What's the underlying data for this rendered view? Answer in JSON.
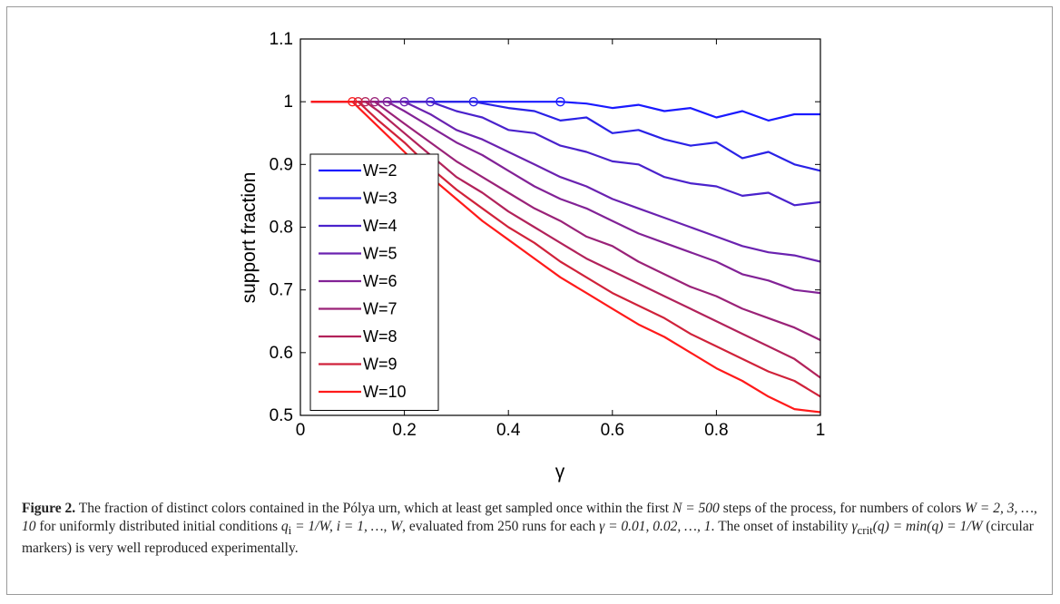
{
  "chart_data": {
    "type": "line",
    "xlabel": "γ",
    "ylabel": "support fraction",
    "xlim": [
      0,
      1
    ],
    "ylim": [
      0.5,
      1.1
    ],
    "xticks": [
      "0",
      "0.2",
      "0.4",
      "0.6",
      "0.8",
      "1"
    ],
    "yticks": [
      "0.5",
      "0.6",
      "0.7",
      "0.8",
      "0.9",
      "1",
      "1.1"
    ],
    "legend_position": "bottom-left",
    "grid": false,
    "markers": {
      "description": "circular markers at onset of instability",
      "points": [
        {
          "x": 0.5,
          "y": 1.0
        },
        {
          "x": 0.333,
          "y": 1.0
        },
        {
          "x": 0.25,
          "y": 1.0
        },
        {
          "x": 0.2,
          "y": 1.0
        },
        {
          "x": 0.167,
          "y": 1.0
        },
        {
          "x": 0.143,
          "y": 1.0
        },
        {
          "x": 0.125,
          "y": 1.0
        },
        {
          "x": 0.111,
          "y": 1.0
        },
        {
          "x": 0.1,
          "y": 1.0
        }
      ]
    },
    "series": [
      {
        "name": "W=2",
        "color": "#1a1aff",
        "onset": 0.5,
        "x": [
          0.02,
          0.5,
          0.55,
          0.6,
          0.65,
          0.7,
          0.75,
          0.8,
          0.85,
          0.9,
          0.95,
          1.0
        ],
        "y": [
          1.0,
          1.0,
          0.997,
          0.99,
          0.995,
          0.985,
          0.99,
          0.975,
          0.985,
          0.97,
          0.98,
          0.98
        ]
      },
      {
        "name": "W=3",
        "color": "#2a22e6",
        "onset": 0.333,
        "x": [
          0.02,
          0.333,
          0.4,
          0.45,
          0.5,
          0.55,
          0.6,
          0.65,
          0.7,
          0.75,
          0.8,
          0.85,
          0.9,
          0.95,
          1.0
        ],
        "y": [
          1.0,
          1.0,
          0.99,
          0.985,
          0.97,
          0.975,
          0.95,
          0.955,
          0.94,
          0.93,
          0.935,
          0.91,
          0.92,
          0.9,
          0.89
        ]
      },
      {
        "name": "W=4",
        "color": "#4a22cc",
        "onset": 0.25,
        "x": [
          0.02,
          0.25,
          0.3,
          0.35,
          0.4,
          0.45,
          0.5,
          0.55,
          0.6,
          0.65,
          0.7,
          0.75,
          0.8,
          0.85,
          0.9,
          0.95,
          1.0
        ],
        "y": [
          1.0,
          1.0,
          0.985,
          0.975,
          0.955,
          0.95,
          0.93,
          0.92,
          0.905,
          0.9,
          0.88,
          0.87,
          0.865,
          0.85,
          0.855,
          0.835,
          0.84
        ]
      },
      {
        "name": "W=5",
        "color": "#6a22b0",
        "onset": 0.2,
        "x": [
          0.02,
          0.2,
          0.25,
          0.3,
          0.35,
          0.4,
          0.45,
          0.5,
          0.55,
          0.6,
          0.65,
          0.7,
          0.75,
          0.8,
          0.85,
          0.9,
          0.95,
          1.0
        ],
        "y": [
          1.0,
          1.0,
          0.98,
          0.955,
          0.94,
          0.92,
          0.9,
          0.88,
          0.865,
          0.845,
          0.83,
          0.815,
          0.8,
          0.785,
          0.77,
          0.76,
          0.755,
          0.745
        ]
      },
      {
        "name": "W=6",
        "color": "#822296",
        "onset": 0.167,
        "x": [
          0.02,
          0.167,
          0.2,
          0.25,
          0.3,
          0.35,
          0.4,
          0.45,
          0.5,
          0.55,
          0.6,
          0.65,
          0.7,
          0.75,
          0.8,
          0.85,
          0.9,
          0.95,
          1.0
        ],
        "y": [
          1.0,
          1.0,
          0.985,
          0.96,
          0.935,
          0.915,
          0.89,
          0.865,
          0.845,
          0.83,
          0.81,
          0.79,
          0.775,
          0.76,
          0.745,
          0.725,
          0.715,
          0.7,
          0.695
        ]
      },
      {
        "name": "W=7",
        "color": "#9a2278",
        "onset": 0.143,
        "x": [
          0.02,
          0.143,
          0.2,
          0.25,
          0.3,
          0.35,
          0.4,
          0.45,
          0.5,
          0.55,
          0.6,
          0.65,
          0.7,
          0.75,
          0.8,
          0.85,
          0.9,
          0.95,
          1.0
        ],
        "y": [
          1.0,
          1.0,
          0.965,
          0.935,
          0.905,
          0.88,
          0.855,
          0.83,
          0.81,
          0.785,
          0.77,
          0.745,
          0.725,
          0.705,
          0.69,
          0.67,
          0.655,
          0.64,
          0.62
        ]
      },
      {
        "name": "W=8",
        "color": "#b2225a",
        "onset": 0.125,
        "x": [
          0.02,
          0.125,
          0.15,
          0.2,
          0.25,
          0.3,
          0.35,
          0.4,
          0.45,
          0.5,
          0.55,
          0.6,
          0.65,
          0.7,
          0.75,
          0.8,
          0.85,
          0.9,
          0.95,
          1.0
        ],
        "y": [
          1.0,
          1.0,
          0.985,
          0.95,
          0.915,
          0.88,
          0.855,
          0.825,
          0.8,
          0.775,
          0.75,
          0.73,
          0.71,
          0.69,
          0.67,
          0.65,
          0.63,
          0.61,
          0.59,
          0.56
        ]
      },
      {
        "name": "W=9",
        "color": "#d0223a",
        "onset": 0.111,
        "x": [
          0.02,
          0.111,
          0.15,
          0.2,
          0.25,
          0.3,
          0.35,
          0.4,
          0.45,
          0.5,
          0.55,
          0.6,
          0.65,
          0.7,
          0.75,
          0.8,
          0.85,
          0.9,
          0.95,
          1.0
        ],
        "y": [
          1.0,
          1.0,
          0.97,
          0.935,
          0.895,
          0.86,
          0.83,
          0.8,
          0.775,
          0.745,
          0.72,
          0.695,
          0.675,
          0.655,
          0.63,
          0.61,
          0.59,
          0.57,
          0.555,
          0.53
        ]
      },
      {
        "name": "W=10",
        "color": "#ff1a1a",
        "onset": 0.1,
        "x": [
          0.02,
          0.1,
          0.15,
          0.2,
          0.25,
          0.3,
          0.35,
          0.4,
          0.45,
          0.5,
          0.55,
          0.6,
          0.65,
          0.7,
          0.75,
          0.8,
          0.85,
          0.9,
          0.95,
          1.0
        ],
        "y": [
          1.0,
          1.0,
          0.96,
          0.92,
          0.88,
          0.845,
          0.81,
          0.78,
          0.75,
          0.72,
          0.695,
          0.67,
          0.645,
          0.625,
          0.6,
          0.575,
          0.555,
          0.53,
          0.51,
          0.505
        ]
      }
    ]
  },
  "caption": {
    "label": "Figure 2.",
    "text_part1": " The fraction of distinct colors contained in the Pólya urn, which at least get sampled once within the first ",
    "n_expr": "N = 500",
    "text_part2": " steps of the process, for numbers of colors ",
    "w_expr": "W = 2, 3, …, 10",
    "text_part3": " for uniformly distributed initial conditions ",
    "q_expr": "q",
    "q_sub": "i",
    "q_rest": " = 1/W, i = 1, …, W",
    "text_part4": ", evaluated from 250 runs for each ",
    "gamma_expr": "γ = 0.01, 0.02, …, 1",
    "text_part5": ". The onset of instability ",
    "crit_expr": "γ",
    "crit_sub": "crit",
    "crit_rest": "(q) = min(q) = 1/W",
    "text_part6": " (circular markers) is very well reproduced experimentally."
  }
}
